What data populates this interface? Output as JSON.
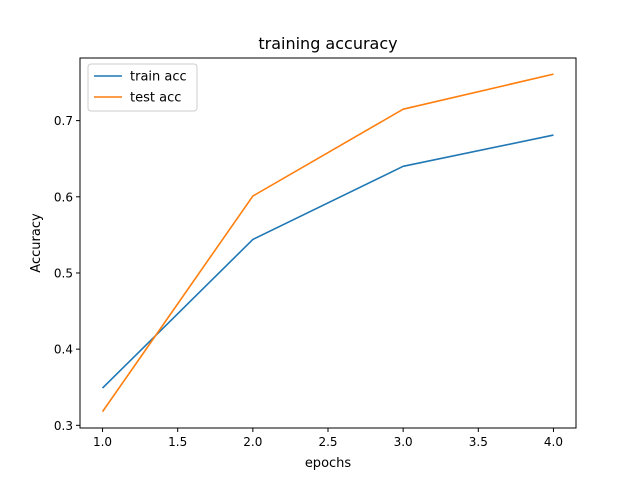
{
  "chart_data": {
    "type": "line",
    "title": "training accuracy",
    "xlabel": "epochs",
    "ylabel": "Accuracy",
    "x": [
      1.0,
      2.0,
      3.0,
      4.0
    ],
    "series": [
      {
        "name": "train acc",
        "values": [
          0.349,
          0.544,
          0.64,
          0.681
        ],
        "color": "#1f77b4"
      },
      {
        "name": "test acc",
        "values": [
          0.318,
          0.601,
          0.715,
          0.761
        ],
        "color": "#ff7f0e"
      }
    ],
    "xlim": [
      0.85,
      4.15
    ],
    "ylim": [
      0.2965,
      0.7822
    ],
    "xticks": [
      1.0,
      1.5,
      2.0,
      2.5,
      3.0,
      3.5,
      4.0
    ],
    "xtick_labels": [
      "1.0",
      "1.5",
      "2.0",
      "2.5",
      "3.0",
      "3.5",
      "4.0"
    ],
    "yticks": [
      0.3,
      0.4,
      0.5,
      0.6,
      0.7
    ],
    "ytick_labels": [
      "0.3",
      "0.4",
      "0.5",
      "0.6",
      "0.7"
    ],
    "grid": false,
    "legend_position": "upper left"
  }
}
